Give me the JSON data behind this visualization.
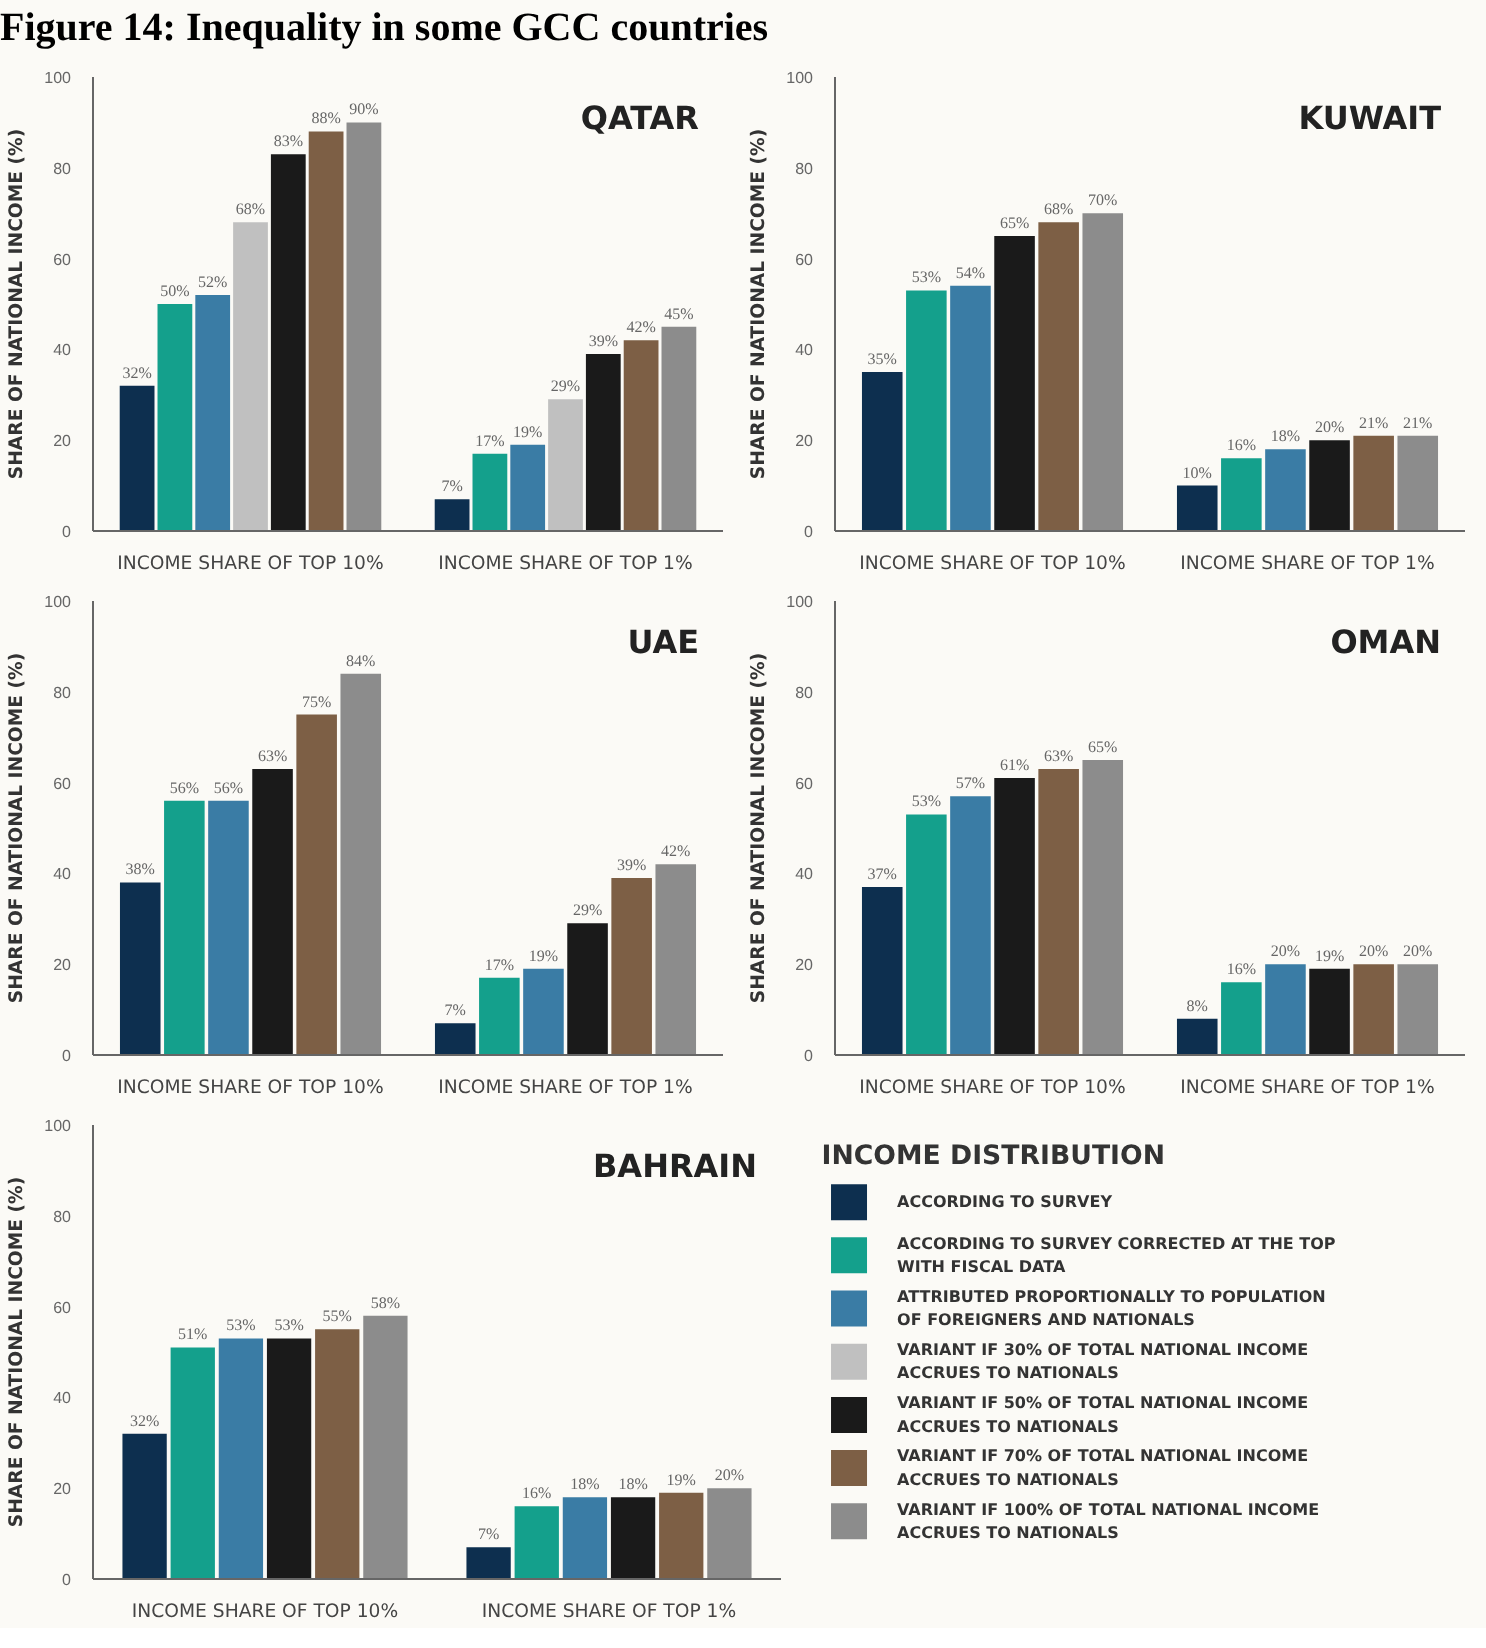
{
  "chart_data": [
    {
      "type": "bar",
      "title": "QATAR",
      "ylabel": "SHARE OF NATIONAL INCOME (%)",
      "annotations": [
        "Figure 14: Inequality in some GCC countries"
      ],
      "categories": [
        "INCOME SHARE OF TOP 10%",
        "INCOME SHARE OF TOP 1%"
      ],
      "ylim": [
        0,
        100
      ],
      "yticks": [
        0,
        20,
        40,
        60,
        80,
        100
      ],
      "grid": false,
      "legend": false,
      "series": [
        {
          "color": "#0d2f4f",
          "values": [
            32,
            7
          ],
          "value_labels": [
            "32%",
            "7%"
          ]
        },
        {
          "color": "#14a08c",
          "values": [
            50,
            17
          ],
          "value_labels": [
            "50%",
            "17%"
          ]
        },
        {
          "color": "#3a7ca5",
          "values": [
            52,
            19
          ],
          "value_labels": [
            "52%",
            "19%"
          ]
        },
        {
          "color": "#c0c0c0",
          "values": [
            68,
            29
          ],
          "value_labels": [
            "68%",
            "29%"
          ]
        },
        {
          "color": "#1a1a1a",
          "values": [
            83,
            39
          ],
          "value_labels": [
            "83%",
            "39%"
          ]
        },
        {
          "color": "#7d5f45",
          "values": [
            88,
            42
          ],
          "value_labels": [
            "88%",
            "42%"
          ]
        },
        {
          "color": "#8c8c8c",
          "values": [
            90,
            45
          ],
          "value_labels": [
            "90%",
            "45%"
          ]
        }
      ]
    },
    {
      "type": "bar",
      "title": "KUWAIT",
      "ylabel": "SHARE OF NATIONAL INCOME (%)",
      "categories": [
        "INCOME SHARE OF TOP 10%",
        "INCOME SHARE OF TOP 1%"
      ],
      "ylim": [
        0,
        100
      ],
      "yticks": [
        0,
        20,
        40,
        60,
        80,
        100
      ],
      "grid": false,
      "legend": false,
      "series": [
        {
          "color": "#0d2f4f",
          "values": [
            35,
            10
          ],
          "value_labels": [
            "35%",
            "10%"
          ]
        },
        {
          "color": "#14a08c",
          "values": [
            53,
            16
          ],
          "value_labels": [
            "53%",
            "16%"
          ]
        },
        {
          "color": "#3a7ca5",
          "values": [
            54,
            18
          ],
          "value_labels": [
            "54%",
            "18%"
          ]
        },
        {
          "color": "#c0c0c0",
          "values": [
            null,
            null
          ],
          "value_labels": [
            null,
            null
          ]
        },
        {
          "color": "#1a1a1a",
          "values": [
            65,
            20
          ],
          "value_labels": [
            "65%",
            "20%"
          ]
        },
        {
          "color": "#7d5f45",
          "values": [
            68,
            21
          ],
          "value_labels": [
            "68%",
            "21%"
          ]
        },
        {
          "color": "#8c8c8c",
          "values": [
            70,
            21
          ],
          "value_labels": [
            "70%",
            "21%"
          ]
        }
      ]
    },
    {
      "type": "bar",
      "title": "UAE",
      "ylabel": "SHARE OF NATIONAL INCOME (%)",
      "categories": [
        "INCOME SHARE OF TOP 10%",
        "INCOME SHARE OF TOP 1%"
      ],
      "ylim": [
        0,
        100
      ],
      "yticks": [
        0,
        20,
        40,
        60,
        80,
        100
      ],
      "grid": false,
      "legend": false,
      "series": [
        {
          "color": "#0d2f4f",
          "values": [
            38,
            7
          ],
          "value_labels": [
            "38%",
            "7%"
          ]
        },
        {
          "color": "#14a08c",
          "values": [
            56,
            17
          ],
          "value_labels": [
            "56%",
            "17%"
          ]
        },
        {
          "color": "#3a7ca5",
          "values": [
            56,
            19
          ],
          "value_labels": [
            "56%",
            "19%"
          ]
        },
        {
          "color": "#c0c0c0",
          "values": [
            null,
            null
          ],
          "value_labels": [
            null,
            null
          ]
        },
        {
          "color": "#1a1a1a",
          "values": [
            63,
            29
          ],
          "value_labels": [
            "63%",
            "29%"
          ]
        },
        {
          "color": "#7d5f45",
          "values": [
            75,
            39
          ],
          "value_labels": [
            "75%",
            "39%"
          ]
        },
        {
          "color": "#8c8c8c",
          "values": [
            84,
            42
          ],
          "value_labels": [
            "84%",
            "42%"
          ]
        }
      ]
    },
    {
      "type": "bar",
      "title": "OMAN",
      "ylabel": "SHARE OF NATIONAL INCOME (%)",
      "categories": [
        "INCOME SHARE OF TOP 10%",
        "INCOME SHARE OF TOP 1%"
      ],
      "ylim": [
        0,
        100
      ],
      "yticks": [
        0,
        20,
        40,
        60,
        80,
        100
      ],
      "grid": false,
      "legend": false,
      "series": [
        {
          "color": "#0d2f4f",
          "values": [
            37,
            8
          ],
          "value_labels": [
            "37%",
            "8%"
          ]
        },
        {
          "color": "#14a08c",
          "values": [
            53,
            16
          ],
          "value_labels": [
            "53%",
            "16%"
          ]
        },
        {
          "color": "#3a7ca5",
          "values": [
            57,
            20
          ],
          "value_labels": [
            "57%",
            "20%"
          ]
        },
        {
          "color": "#c0c0c0",
          "values": [
            null,
            null
          ],
          "value_labels": [
            null,
            null
          ]
        },
        {
          "color": "#1a1a1a",
          "values": [
            61,
            19
          ],
          "value_labels": [
            "61%",
            "19%"
          ]
        },
        {
          "color": "#7d5f45",
          "values": [
            63,
            20
          ],
          "value_labels": [
            "63%",
            "20%"
          ]
        },
        {
          "color": "#8c8c8c",
          "values": [
            65,
            20
          ],
          "value_labels": [
            "65%",
            "20%"
          ]
        }
      ]
    },
    {
      "type": "bar",
      "title": "BAHRAIN",
      "ylabel": "SHARE OF NATIONAL INCOME (%)",
      "legend_title": "INCOME DISTRIBUTION",
      "categories": [
        "INCOME SHARE OF TOP 10%",
        "INCOME SHARE OF TOP 1%"
      ],
      "ylim": [
        0,
        100
      ],
      "yticks": [
        0,
        20,
        40,
        60,
        80,
        100
      ],
      "grid": false,
      "legend": "right",
      "series": [
        {
          "name": "ACCORDING TO SURVEY",
          "color": "#0d2f4f",
          "values": [
            32,
            7
          ],
          "value_labels": [
            "32%",
            "7%"
          ]
        },
        {
          "name": "ACCORDING TO SURVEY CORRECTED AT THE TOP WITH FISCAL DATA",
          "color": "#14a08c",
          "values": [
            51,
            16
          ],
          "value_labels": [
            "51%",
            "16%"
          ]
        },
        {
          "name": "ATTRIBUTED PROPORTIONALLY TO POPULATION OF FOREIGNERS AND NATIONALS",
          "color": "#3a7ca5",
          "values": [
            53,
            18
          ],
          "value_labels": [
            "53%",
            "18%"
          ]
        },
        {
          "name": "VARIANT IF 30% OF TOTAL NATIONAL INCOME ACCRUES TO NATIONALS",
          "color": "#c0c0c0",
          "values": [
            null,
            null
          ],
          "value_labels": [
            null,
            null
          ]
        },
        {
          "name": "VARIANT IF 50% OF TOTAL NATIONAL INCOME ACCRUES TO NATIONALS",
          "color": "#1a1a1a",
          "values": [
            53,
            18
          ],
          "value_labels": [
            "53%",
            "18%"
          ]
        },
        {
          "name": "VARIANT IF 70% OF TOTAL NATIONAL INCOME ACCRUES TO NATIONALS",
          "color": "#7d5f45",
          "values": [
            55,
            19
          ],
          "value_labels": [
            "55%",
            "19%"
          ]
        },
        {
          "name": "VARIANT IF 100% OF TOTAL NATIONAL INCOME ACCRUES TO NATIONALS",
          "color": "#8c8c8c",
          "values": [
            58,
            20
          ],
          "value_labels": [
            "58%",
            "20%"
          ]
        }
      ]
    }
  ]
}
